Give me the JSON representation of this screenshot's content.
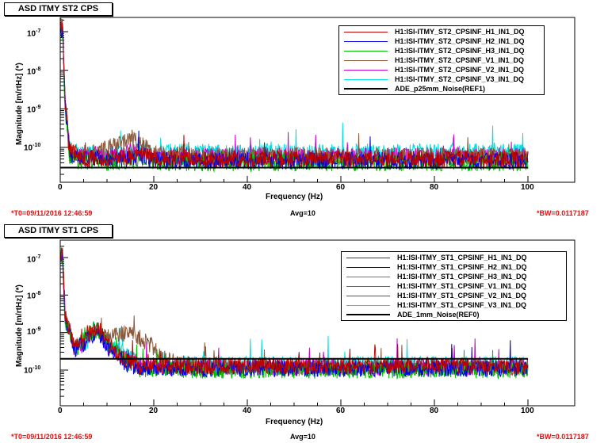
{
  "charts": [
    {
      "title": "ASD ITMY ST2 CPS",
      "ylabel": "Magnitude [m/rtHz] (*)",
      "xlabel": "Frequency (Hz)",
      "footer": {
        "t0": "*T0=09/11/2016 12:46:59",
        "avg": "Avg=10",
        "bw": "*BW=0.0117187"
      },
      "xticks": [
        "0",
        "20",
        "40",
        "60",
        "80",
        "100"
      ],
      "yticks": [
        {
          "base": "10",
          "exp": "-7"
        },
        {
          "base": "10",
          "exp": "-8"
        },
        {
          "base": "10",
          "exp": "-9"
        },
        {
          "base": "10",
          "exp": "-10"
        }
      ],
      "legend": [
        {
          "label": "H1:ISI-ITMY_ST2_CPSINF_H1_IN1_DQ",
          "color": "#c00000"
        },
        {
          "label": "H1:ISI-ITMY_ST2_CPSINF_H2_IN1_DQ",
          "color": "#0000e0"
        },
        {
          "label": "H1:ISI-ITMY_ST2_CPSINF_H3_IN1_DQ",
          "color": "#00c000"
        },
        {
          "label": "H1:ISI-ITMY_ST2_CPSINF_V1_IN1_DQ",
          "color": "#8b5a3c"
        },
        {
          "label": "H1:ISI-ITMY_ST2_CPSINF_V2_IN1_DQ",
          "color": "#d000d0"
        },
        {
          "label": "H1:ISI-ITMY_ST2_CPSINF_V3_IN1_DQ",
          "color": "#00e0e0"
        },
        {
          "label": "ADE_p25mm_Noise(REF1)",
          "color": "#000000"
        }
      ]
    },
    {
      "title": "ASD ITMY ST1 CPS",
      "ylabel": "Magnitude [m/rtHz] (*)",
      "xlabel": "Frequency (Hz)",
      "footer": {
        "t0": "*T0=09/11/2016 12:46:59",
        "avg": "Avg=10",
        "bw": "*BW=0.0117187"
      },
      "xticks": [
        "0",
        "20",
        "40",
        "60",
        "80",
        "100"
      ],
      "yticks": [
        {
          "base": "10",
          "exp": "-7"
        },
        {
          "base": "10",
          "exp": "-8"
        },
        {
          "base": "10",
          "exp": "-9"
        },
        {
          "base": "10",
          "exp": "-10"
        }
      ],
      "legend": [
        {
          "label": "H1:ISI-ITMY_ST1_CPSINF_H1_IN1_DQ",
          "color": "#c00000"
        },
        {
          "label": "H1:ISI-ITMY_ST1_CPSINF_H2_IN1_DQ",
          "color": "#0000e0"
        },
        {
          "label": "H1:ISI-ITMY_ST1_CPSINF_H3_IN1_DQ",
          "color": "#00c000"
        },
        {
          "label": "H1:ISI-ITMY_ST1_CPSINF_V1_IN1_DQ",
          "color": "#8b5a3c"
        },
        {
          "label": "H1:ISI-ITMY_ST1_CPSINF_V2_IN1_DQ",
          "color": "#d000d0"
        },
        {
          "label": "H1:ISI-ITMY_ST1_CPSINF_V3_IN1_DQ",
          "color": "#00e0e0"
        },
        {
          "label": "ADE_1mm_Noise(REF0)",
          "color": "#000000"
        }
      ]
    }
  ],
  "chart_data": [
    {
      "type": "line",
      "xscale": "linear",
      "yscale": "log",
      "xlim": [
        0,
        100
      ],
      "ylim": [
        2e-11,
        2e-07
      ],
      "grid": false,
      "legend_position": "top-right",
      "series": [
        {
          "name": "H1:ISI-ITMY_ST2_CPSINF_H1_IN1_DQ",
          "x": [
            0.5,
            1,
            2,
            5,
            8,
            10,
            15,
            18,
            20,
            30,
            40,
            60,
            80,
            100
          ],
          "y": [
            1.5e-07,
            2e-09,
            8e-11,
            5e-11,
            6e-11,
            5e-11,
            6e-11,
            7e-11,
            5e-11,
            5e-11,
            5e-11,
            5e-11,
            5e-11,
            5e-11
          ]
        },
        {
          "name": "H1:ISI-ITMY_ST2_CPSINF_H2_IN1_DQ",
          "x": [
            0.5,
            1,
            2,
            5,
            8,
            10,
            15,
            18,
            20,
            30,
            40,
            60,
            80,
            100
          ],
          "y": [
            1.2e-07,
            1.5e-09,
            7e-11,
            4.5e-11,
            5.5e-11,
            4.5e-11,
            5e-11,
            6e-11,
            4.5e-11,
            4.5e-11,
            4.5e-11,
            4.5e-11,
            4.5e-11,
            4.5e-11
          ]
        },
        {
          "name": "H1:ISI-ITMY_ST2_CPSINF_H3_IN1_DQ",
          "x": [
            0.5,
            1,
            2,
            5,
            8,
            10,
            15,
            18,
            20,
            30,
            40,
            60,
            80,
            100
          ],
          "y": [
            1e-07,
            1.2e-09,
            6e-11,
            4e-11,
            5e-11,
            4e-11,
            4.5e-11,
            5.5e-11,
            4e-11,
            4e-11,
            4e-11,
            4e-11,
            4e-11,
            4e-11
          ]
        },
        {
          "name": "H1:ISI-ITMY_ST2_CPSINF_V1_IN1_DQ",
          "x": [
            0.5,
            1,
            2,
            5,
            8,
            10,
            12,
            15,
            17,
            20,
            30,
            40,
            60,
            80,
            100
          ],
          "y": [
            1.8e-07,
            2.5e-09,
            9e-11,
            6e-11,
            8e-11,
            9e-11,
            1.3e-10,
            1.6e-10,
            1.4e-10,
            7e-11,
            6e-11,
            6e-11,
            6e-11,
            6e-11,
            6e-11
          ]
        },
        {
          "name": "H1:ISI-ITMY_ST2_CPSINF_V2_IN1_DQ",
          "x": [
            0.5,
            1,
            2,
            5,
            8,
            10,
            15,
            18,
            20,
            30,
            40,
            60,
            80,
            100
          ],
          "y": [
            1.6e-07,
            2e-09,
            8e-11,
            5.5e-11,
            7e-11,
            6e-11,
            8e-11,
            9e-11,
            6e-11,
            6e-11,
            6e-11,
            6e-11,
            6e-11,
            6e-11
          ]
        },
        {
          "name": "H1:ISI-ITMY_ST2_CPSINF_V3_IN1_DQ",
          "x": [
            0.5,
            1,
            2,
            5,
            8,
            10,
            15,
            18,
            20,
            30,
            40,
            60,
            80,
            100
          ],
          "y": [
            1.4e-07,
            1.8e-09,
            9e-11,
            6.5e-11,
            8e-11,
            7e-11,
            8e-11,
            9e-11,
            7.5e-11,
            7.5e-11,
            7.5e-11,
            7.5e-11,
            7.5e-11,
            7.5e-11
          ]
        },
        {
          "name": "ADE_p25mm_Noise(REF1)",
          "x": [
            0,
            100
          ],
          "y": [
            3e-11,
            3e-11
          ]
        }
      ]
    },
    {
      "type": "line",
      "xscale": "linear",
      "yscale": "log",
      "xlim": [
        0,
        100
      ],
      "ylim": [
        2e-11,
        2e-07
      ],
      "grid": false,
      "legend_position": "top-right",
      "series": [
        {
          "name": "H1:ISI-ITMY_ST1_CPSINF_H1_IN1_DQ",
          "x": [
            0.5,
            1,
            3,
            5,
            8,
            10,
            14,
            17,
            20,
            30,
            40,
            60,
            80,
            100
          ],
          "y": [
            1.5e-07,
            3e-09,
            4e-10,
            6e-10,
            1.5e-09,
            5e-10,
            2e-10,
            1.2e-10,
            1.3e-10,
            1.3e-10,
            1.3e-10,
            1.3e-10,
            1.3e-10,
            1.3e-10
          ]
        },
        {
          "name": "H1:ISI-ITMY_ST1_CPSINF_H2_IN1_DQ",
          "x": [
            0.5,
            1,
            3,
            5,
            8,
            10,
            14,
            17,
            20,
            30,
            40,
            60,
            80,
            100
          ],
          "y": [
            1.2e-07,
            2.5e-09,
            3.5e-10,
            5e-10,
            1.2e-09,
            4e-10,
            1.5e-10,
            1e-10,
            1.1e-10,
            1.1e-10,
            1.1e-10,
            1.1e-10,
            1.1e-10,
            1.1e-10
          ]
        },
        {
          "name": "H1:ISI-ITMY_ST1_CPSINF_H3_IN1_DQ",
          "x": [
            0.5,
            1,
            3,
            5,
            8,
            10,
            14,
            17,
            20,
            30,
            40,
            60,
            80,
            100
          ],
          "y": [
            1e-07,
            2e-09,
            3e-10,
            8e-10,
            1.3e-09,
            4.5e-10,
            1.8e-10,
            1e-10,
            1e-10,
            1e-10,
            1e-10,
            1e-10,
            1e-10,
            1e-10
          ]
        },
        {
          "name": "H1:ISI-ITMY_ST1_CPSINF_V1_IN1_DQ",
          "x": [
            0.5,
            1,
            3,
            5,
            8,
            10,
            12,
            15,
            18,
            20,
            22,
            30,
            40,
            60,
            80,
            100
          ],
          "y": [
            1.3e-07,
            3e-09,
            4e-10,
            6e-10,
            1.2e-09,
            8e-10,
            9e-10,
            1e-09,
            6e-10,
            4e-10,
            2e-10,
            1.2e-10,
            1.2e-10,
            1.2e-10,
            1.2e-10,
            1.2e-10
          ]
        },
        {
          "name": "H1:ISI-ITMY_ST1_CPSINF_V2_IN1_DQ",
          "x": [
            0.5,
            1,
            3,
            5,
            8,
            10,
            14,
            17,
            20,
            30,
            40,
            60,
            80,
            100
          ],
          "y": [
            1.1e-07,
            2.5e-09,
            3.5e-10,
            5e-10,
            1.1e-09,
            4e-10,
            2e-10,
            1.2e-10,
            1.2e-10,
            1.2e-10,
            1.2e-10,
            1.2e-10,
            1.2e-10,
            1.2e-10
          ]
        },
        {
          "name": "H1:ISI-ITMY_ST1_CPSINF_V3_IN1_DQ",
          "x": [
            0.5,
            1,
            3,
            5,
            8,
            10,
            14,
            17,
            20,
            30,
            40,
            60,
            80,
            100
          ],
          "y": [
            1.4e-07,
            3e-09,
            4e-10,
            5e-10,
            1.2e-09,
            5e-10,
            2.5e-10,
            1.5e-10,
            1.4e-10,
            1.4e-10,
            1.4e-10,
            1.4e-10,
            1.4e-10,
            1.4e-10
          ]
        },
        {
          "name": "ADE_1mm_Noise(REF0)",
          "x": [
            0,
            100
          ],
          "y": [
            2e-10,
            2e-10
          ]
        }
      ]
    }
  ]
}
